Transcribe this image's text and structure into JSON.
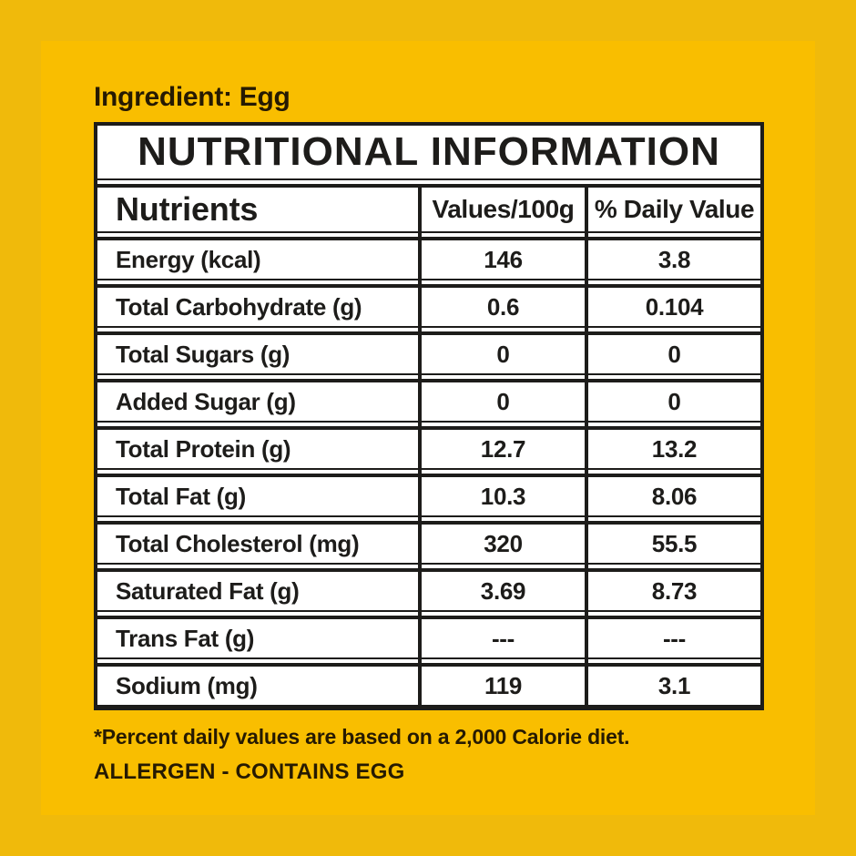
{
  "label": {
    "ingredient_heading": "Ingredient: Egg",
    "footnote": "*Percent daily values are based on a 2,000 Calorie diet.",
    "allergen": "ALLERGEN - CONTAINS EGG"
  },
  "table": {
    "title": "NUTRITIONAL INFORMATION",
    "columns": [
      "Nutrients",
      "Values/100g",
      "% Daily Value"
    ],
    "rows": [
      {
        "nutrient": "Energy (kcal)",
        "value": "146",
        "dv": "3.8"
      },
      {
        "nutrient": "Total Carbohydrate (g)",
        "value": "0.6",
        "dv": "0.104"
      },
      {
        "nutrient": "Total Sugars (g)",
        "value": "0",
        "dv": "0"
      },
      {
        "nutrient": "Added Sugar (g)",
        "value": "0",
        "dv": "0"
      },
      {
        "nutrient": "Total Protein (g)",
        "value": "12.7",
        "dv": "13.2"
      },
      {
        "nutrient": "Total Fat (g)",
        "value": "10.3",
        "dv": "8.06"
      },
      {
        "nutrient": "Total Cholesterol (mg)",
        "value": "320",
        "dv": "55.5"
      },
      {
        "nutrient": "Saturated Fat (g)",
        "value": "3.69",
        "dv": "8.73"
      },
      {
        "nutrient": "Trans Fat (g)",
        "value": "---",
        "dv": "---"
      },
      {
        "nutrient": "Sodium (mg)",
        "value": "119",
        "dv": "3.1"
      }
    ]
  },
  "colors": {
    "frame_yellow": "#F0BA0B",
    "inner_yellow": "#F9BE00",
    "line_black": "#1D1C1A",
    "text_dark": "#261A02"
  }
}
